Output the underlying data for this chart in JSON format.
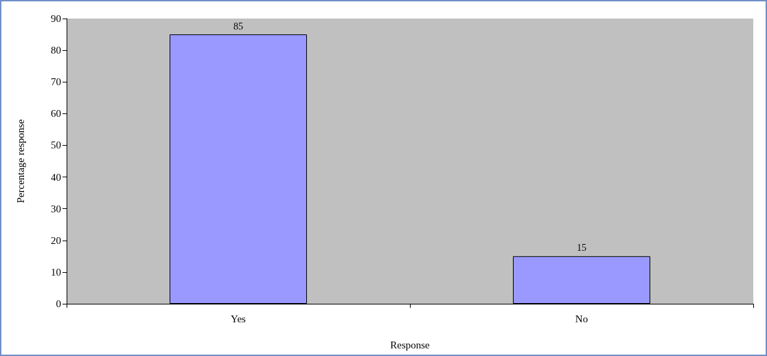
{
  "chart_data": {
    "type": "bar",
    "xlabel": "Response",
    "ylabel": "Percentage response",
    "categories": [
      "Yes",
      "No"
    ],
    "values": [
      85,
      15
    ],
    "color": "#9999ff",
    "ylim": [
      0,
      90
    ],
    "yticks": [
      0,
      10,
      20,
      30,
      40,
      50,
      60,
      70,
      80,
      90
    ],
    "data_labels": true,
    "grid": false
  }
}
